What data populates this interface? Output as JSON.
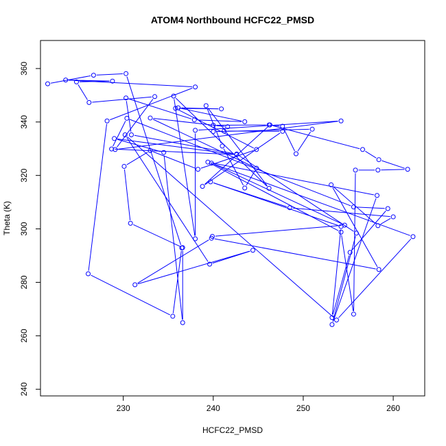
{
  "chart_data": {
    "type": "line",
    "title": "ATOM4 Northbound HCFC22_PMSD",
    "xlabel": "HCFC22_PMSD",
    "ylabel": "Theta (K)",
    "xlim": [
      220.8,
      263.5
    ],
    "ylim": [
      237.5,
      370.5
    ],
    "x_ticks": [
      230,
      240,
      250,
      260
    ],
    "y_ticks": [
      240,
      260,
      280,
      300,
      320,
      340,
      360
    ],
    "grid": false,
    "legend": "none",
    "marker": "open-circle",
    "line_color": "#0000ff",
    "series": [
      {
        "points": [
          [
            221.6,
            354.3
          ],
          [
            226.7,
            357.5
          ],
          [
            230.3,
            358.1
          ],
          [
            236.5,
            292.9
          ],
          [
            235.5,
            267.3
          ],
          [
            226.1,
            283.2
          ],
          [
            228.2,
            340.4
          ],
          [
            238.0,
            353.1
          ],
          [
            223.6,
            355.7
          ],
          [
            228.8,
            355.3
          ],
          [
            224.8,
            355.0
          ],
          [
            226.2,
            347.3
          ],
          [
            233.5,
            349.5
          ],
          [
            229.1,
            329.7
          ],
          [
            254.2,
            340.4
          ],
          [
            238.0,
            336.9
          ],
          [
            238.0,
            296.3
          ],
          [
            235.6,
            349.7
          ],
          [
            246.2,
            315.2
          ],
          [
            239.2,
            346.1
          ],
          [
            241.0,
            331.0
          ],
          [
            243.5,
            315.3
          ],
          [
            244.8,
            322.7
          ],
          [
            233.0,
            341.5
          ],
          [
            241.6,
            338.2
          ],
          [
            240.0,
            338.8
          ],
          [
            246.2,
            338.9
          ],
          [
            247.7,
            338.4
          ],
          [
            249.2,
            328.1
          ],
          [
            251.0,
            337.3
          ],
          [
            240.0,
            336.4
          ],
          [
            241.2,
            336.6
          ],
          [
            247.7,
            336.5
          ],
          [
            238.8,
            315.9
          ],
          [
            246.3,
            338.9
          ],
          [
            256.6,
            329.7
          ],
          [
            258.4,
            325.9
          ],
          [
            261.6,
            322.3
          ],
          [
            258.3,
            322.0
          ],
          [
            255.8,
            322.0
          ],
          [
            255.6,
            268.1
          ],
          [
            254.2,
            298.8
          ],
          [
            239.4,
            325.0
          ],
          [
            258.2,
            312.5
          ],
          [
            253.2,
            264.2
          ],
          [
            255.9,
            298.4
          ],
          [
            242.6,
            328.0
          ],
          [
            230.9,
            335.2
          ],
          [
            230.3,
            349.0
          ],
          [
            237.9,
            340.8
          ],
          [
            243.5,
            340.1
          ],
          [
            236.1,
            345.3
          ],
          [
            240.9,
            344.9
          ],
          [
            235.8,
            345.1
          ],
          [
            244.8,
            329.7
          ],
          [
            238.3,
            322.3
          ],
          [
            233.0,
            329.3
          ],
          [
            230.1,
            323.4
          ],
          [
            230.8,
            302.1
          ],
          [
            236.6,
            293.0
          ],
          [
            236.6,
            264.9
          ],
          [
            234.5,
            328.6
          ],
          [
            229.0,
            333.8
          ],
          [
            242.6,
            327.8
          ],
          [
            228.7,
            329.9
          ],
          [
            230.4,
            341.4
          ],
          [
            255.6,
            308.2
          ],
          [
            259.4,
            307.6
          ],
          [
            255.2,
            291.2
          ],
          [
            253.2,
            266.8
          ],
          [
            254.2,
            300.9
          ],
          [
            239.7,
            317.6
          ],
          [
            248.5,
            307.9
          ],
          [
            260.0,
            304.5
          ],
          [
            258.3,
            301.2
          ],
          [
            253.1,
            316.5
          ],
          [
            258.4,
            284.8
          ],
          [
            239.8,
            296.5
          ],
          [
            231.3,
            279.1
          ],
          [
            244.4,
            292.0
          ],
          [
            239.6,
            286.8
          ],
          [
            230.2,
            335.2
          ],
          [
            253.7,
            265.9
          ],
          [
            262.2,
            297.1
          ],
          [
            239.8,
            324.6
          ],
          [
            254.6,
            301.4
          ],
          [
            239.9,
            297.2
          ]
        ]
      }
    ]
  }
}
